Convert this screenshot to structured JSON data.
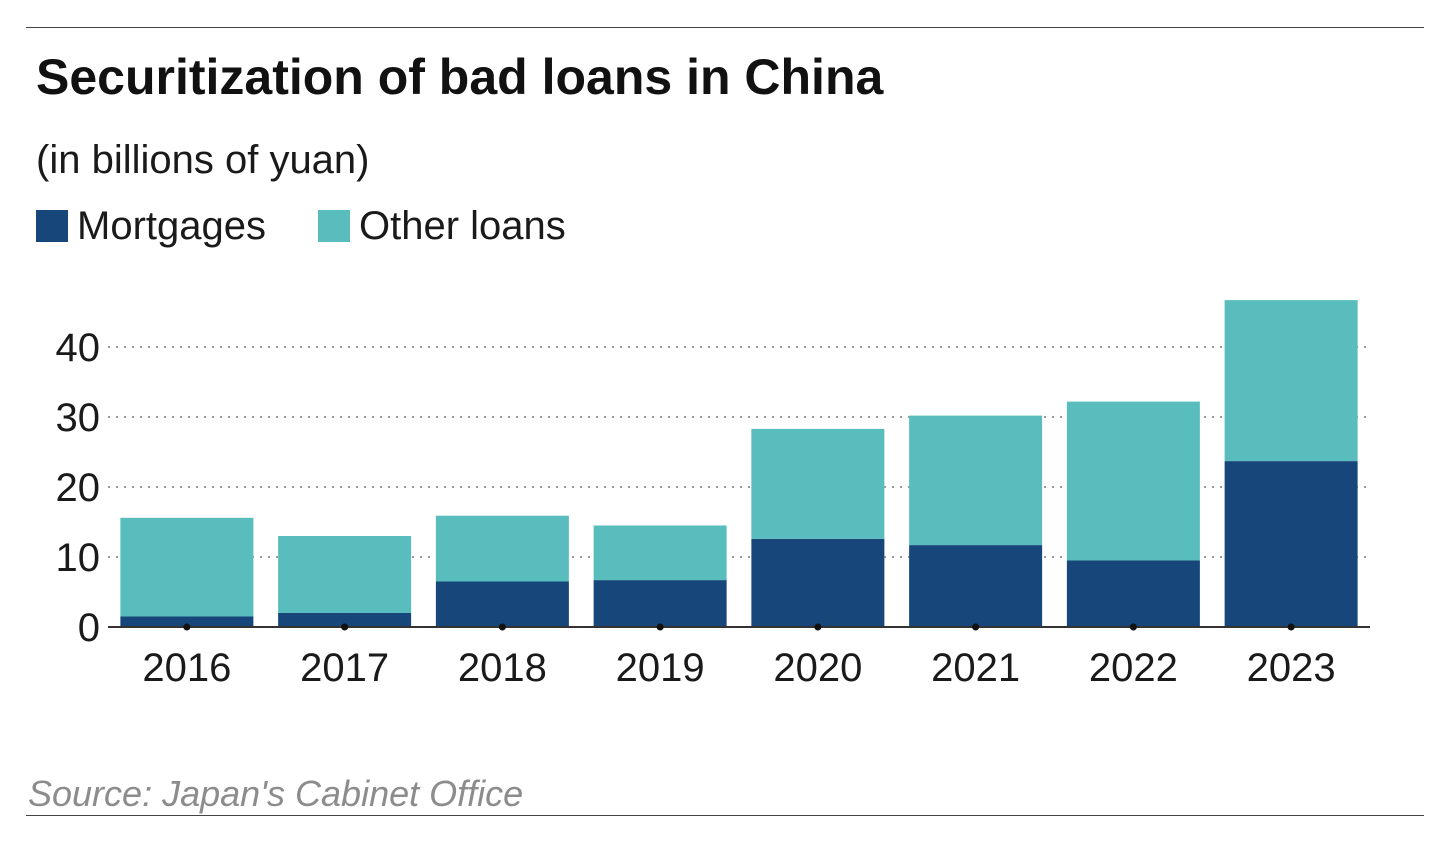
{
  "chart_data": {
    "type": "bar",
    "stacked": true,
    "title": "Securitization of bad loans in China",
    "subtitle": "(in billions of yuan)",
    "categories": [
      "2016",
      "2017",
      "2018",
      "2019",
      "2020",
      "2021",
      "2022",
      "2023"
    ],
    "series": [
      {
        "name": "Mortgages",
        "color": "#17467a",
        "values": [
          1.5,
          2.0,
          6.5,
          6.7,
          12.6,
          11.7,
          9.5,
          23.7
        ]
      },
      {
        "name": "Other loans",
        "color": "#5abdbd",
        "values": [
          14.1,
          11.0,
          9.4,
          7.8,
          15.7,
          18.5,
          22.7,
          23.0
        ]
      }
    ],
    "yticks": [
      "0",
      "10",
      "20",
      "30",
      "40"
    ],
    "ylim": [
      0,
      47
    ],
    "grid": true,
    "legend": "top-left",
    "source": "Source: Japan's Cabinet Office"
  }
}
